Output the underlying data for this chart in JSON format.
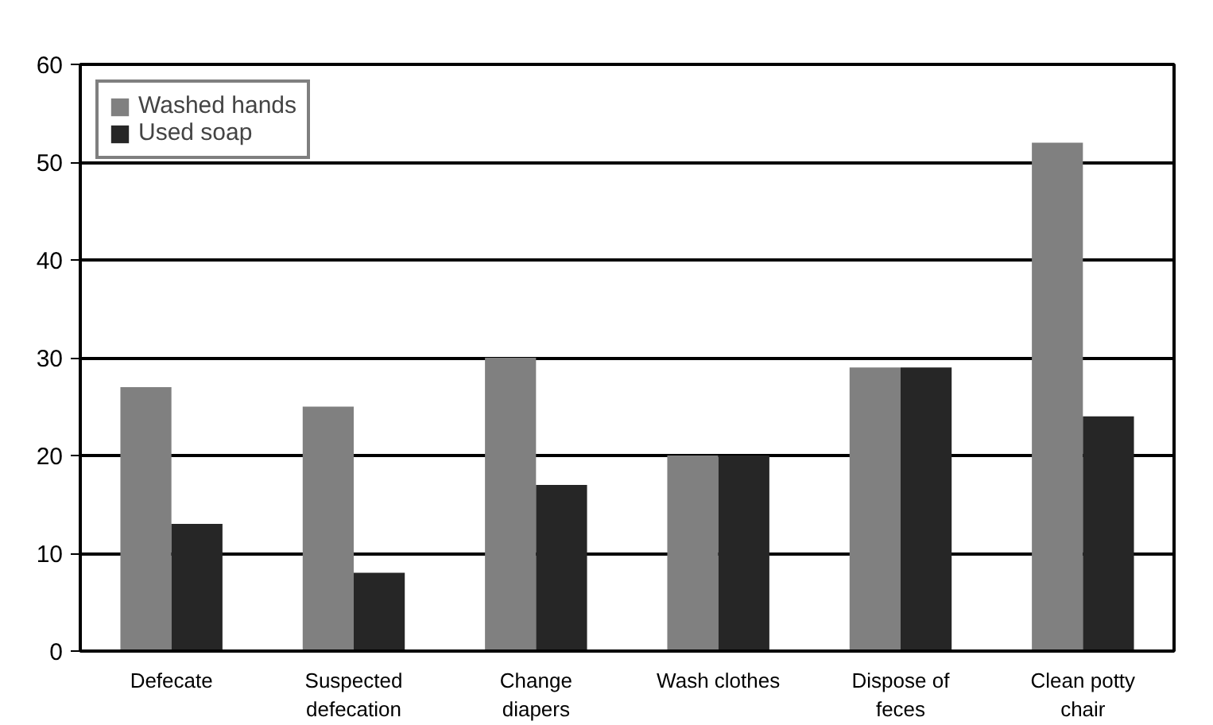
{
  "chart_data": {
    "type": "bar",
    "categories": [
      "Defecate",
      "Suspected defecation",
      "Change diapers",
      "Wash clothes",
      "Dispose of feces",
      "Clean potty chair"
    ],
    "series": [
      {
        "name": "Washed hands",
        "color": "#808080",
        "values": [
          27,
          25,
          30,
          20,
          29,
          52
        ]
      },
      {
        "name": "Used soap",
        "color": "#262626",
        "values": [
          13,
          8,
          17,
          20,
          29,
          24
        ]
      }
    ],
    "ylim": [
      0,
      60
    ],
    "yticks": [
      0,
      10,
      20,
      30,
      40,
      50,
      60
    ],
    "grid": "y",
    "legend": "top left"
  }
}
